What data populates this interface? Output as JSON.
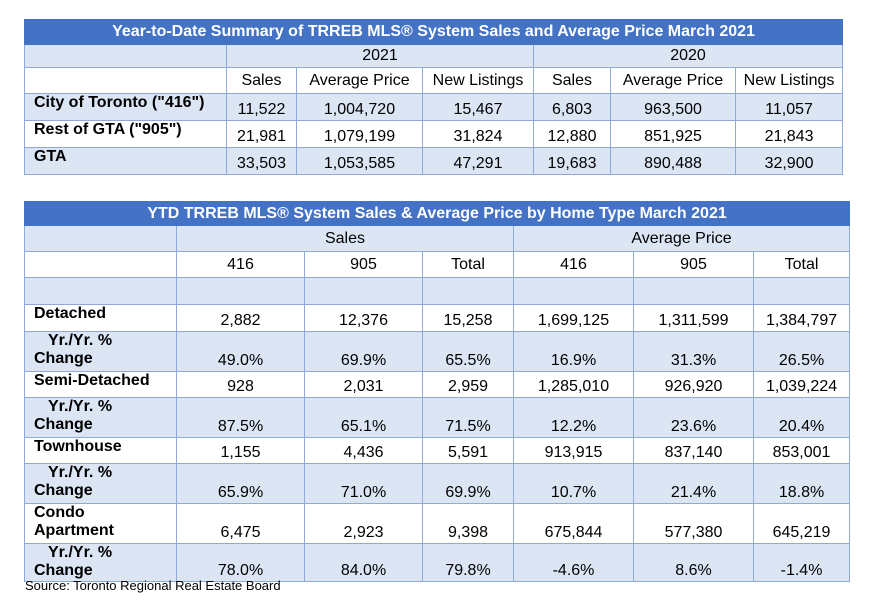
{
  "summary": {
    "title": "Year-to-Date Summary of TRREB MLS® System Sales and Average Price March 2021",
    "years": [
      "2021",
      "2020"
    ],
    "columns": [
      "Sales",
      "Average Price",
      "New Listings",
      "Sales",
      "Average Price",
      "New Listings"
    ],
    "rows": [
      {
        "label": "City of Toronto (\"416\")",
        "values": [
          "11,522",
          "1,004,720",
          "15,467",
          "6,803",
          "963,500",
          "11,057"
        ]
      },
      {
        "label": "Rest of GTA (\"905\")",
        "values": [
          "21,981",
          "1,079,199",
          "31,824",
          "12,880",
          "851,925",
          "21,843"
        ]
      },
      {
        "label": "GTA",
        "values": [
          "33,503",
          "1,053,585",
          "47,291",
          "19,683",
          "890,488",
          "32,900"
        ]
      }
    ]
  },
  "by_type": {
    "title": "YTD TRREB MLS® System Sales & Average Price by Home Type March 2021",
    "groups": [
      "Sales",
      "Average Price"
    ],
    "columns": [
      "416",
      "905",
      "Total",
      "416",
      "905",
      "Total"
    ],
    "rows": [
      {
        "label": "Detached",
        "values": [
          "2,882",
          "12,376",
          "15,258",
          "1,699,125",
          "1,311,599",
          "1,384,797"
        ]
      },
      {
        "label_line1": "Yr./Yr. %",
        "label_line2": "Change",
        "values": [
          "49.0%",
          "69.9%",
          "65.5%",
          "16.9%",
          "31.3%",
          "26.5%"
        ]
      },
      {
        "label": "Semi-Detached",
        "values": [
          "928",
          "2,031",
          "2,959",
          "1,285,010",
          "926,920",
          "1,039,224"
        ]
      },
      {
        "label_line1": "Yr./Yr. %",
        "label_line2": "Change",
        "values": [
          "87.5%",
          "65.1%",
          "71.5%",
          "12.2%",
          "23.6%",
          "20.4%"
        ]
      },
      {
        "label": "Townhouse",
        "values": [
          "1,155",
          "4,436",
          "5,591",
          "913,915",
          "837,140",
          "853,001"
        ]
      },
      {
        "label_line1": "Yr./Yr. %",
        "label_line2": "Change",
        "values": [
          "65.9%",
          "71.0%",
          "69.9%",
          "10.7%",
          "21.4%",
          "18.8%"
        ]
      },
      {
        "label_line1": "Condo",
        "label_line2": "Apartment",
        "values": [
          "6,475",
          "2,923",
          "9,398",
          "675,844",
          "577,380",
          "645,219"
        ]
      },
      {
        "label_line1": "Yr./Yr. %",
        "label_line2": "Change",
        "values": [
          "78.0%",
          "84.0%",
          "79.8%",
          "-4.6%",
          "8.6%",
          "-1.4%"
        ]
      }
    ]
  },
  "source": "Source: Toronto Regional Real Estate Board"
}
